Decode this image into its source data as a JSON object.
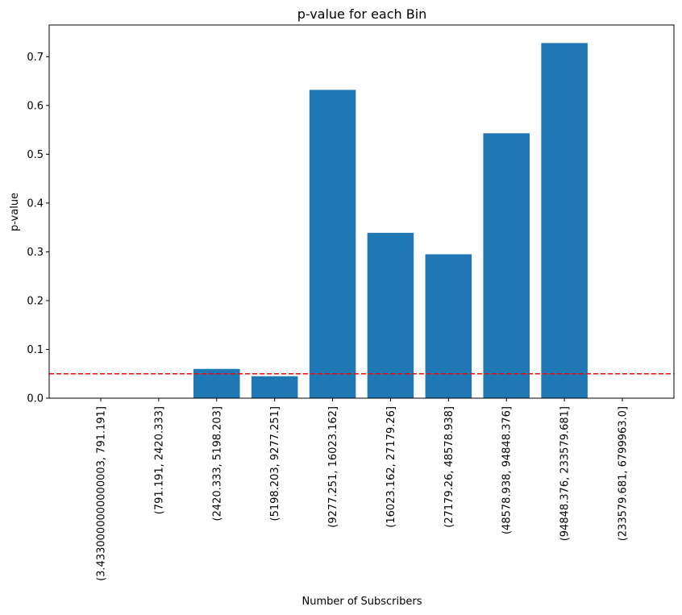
{
  "chart_data": {
    "type": "bar",
    "title": "p-value for each Bin",
    "xlabel": "Number of Subscribers",
    "ylabel": "p-value",
    "categories": [
      "(3.4330000000000003, 791.191]",
      "(791.191, 2420.333]",
      "(2420.333, 5198.203]",
      "(5198.203, 9277.251]",
      "(9277.251, 16023.162]",
      "(16023.162, 27179.26]",
      "(27179.26, 48578.938]",
      "(48578.938, 94848.376]",
      "(94848.376, 233579.681]",
      "(233579.681, 6799963.0]"
    ],
    "values": [
      0.0,
      0.0,
      0.06,
      0.045,
      0.632,
      0.339,
      0.295,
      0.543,
      0.728,
      0.0
    ],
    "ylim": [
      0,
      0.765
    ],
    "yticks": [
      0.0,
      0.1,
      0.2,
      0.3,
      0.4,
      0.5,
      0.6,
      0.7
    ],
    "ytick_labels": [
      "0.0",
      "0.1",
      "0.2",
      "0.3",
      "0.4",
      "0.5",
      "0.6",
      "0.7"
    ],
    "reference_line": {
      "y": 0.05,
      "style": "dashed",
      "color": "#ff0000"
    },
    "bar_color": "#1f77b4",
    "grid": false,
    "legend": "none"
  }
}
